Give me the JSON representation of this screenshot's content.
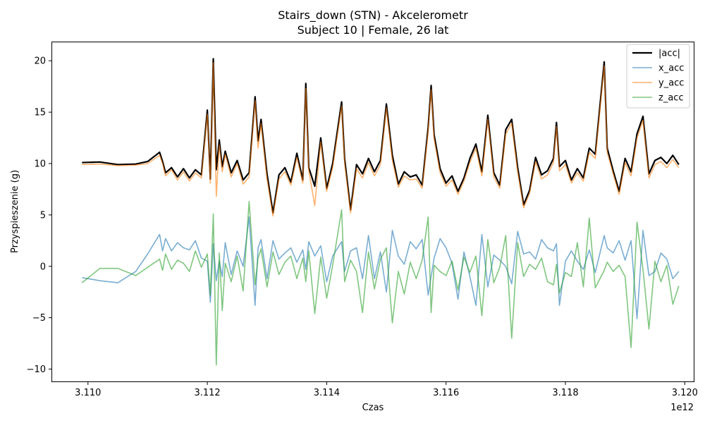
{
  "chart_data": {
    "type": "line",
    "title": "Stairs_down (STN) - Akcelerometr",
    "subtitle": "Subject 10 | Female, 26 lat",
    "xlabel": "Czas",
    "ylabel": "Przyspieszenie (g)",
    "x_offset_label": "1e12",
    "xlim": [
      3.1094,
      3.12015
    ],
    "ylim": [
      -11.2,
      21.8
    ],
    "xticks": [
      3.11,
      3.112,
      3.114,
      3.116,
      3.118,
      3.12
    ],
    "xtick_labels": [
      "3.110",
      "3.112",
      "3.114",
      "3.116",
      "3.118",
      "3.120"
    ],
    "yticks": [
      -10,
      -5,
      0,
      5,
      10,
      15,
      20
    ],
    "ytick_labels": [
      "−10",
      "−5",
      "0",
      "5",
      "10",
      "15",
      "20"
    ],
    "grid": false,
    "legend_position": "top-right",
    "series": [
      {
        "name": "|acc|",
        "color": "#000000",
        "width": 2.2,
        "opacity": 1,
        "x": [
          3.1099,
          3.1102,
          3.1105,
          3.1108,
          3.111,
          3.1112,
          3.11125,
          3.1113,
          3.1114,
          3.1115,
          3.1116,
          3.1117,
          3.1118,
          3.1119,
          3.112,
          3.11205,
          3.1121,
          3.11215,
          3.1122,
          3.11225,
          3.1123,
          3.1124,
          3.1125,
          3.1126,
          3.1127,
          3.1128,
          3.11285,
          3.1129,
          3.113,
          3.1131,
          3.1132,
          3.1133,
          3.1134,
          3.1135,
          3.1136,
          3.11365,
          3.1137,
          3.1138,
          3.1139,
          3.114,
          3.1141,
          3.11425,
          3.1143,
          3.1144,
          3.1145,
          3.1146,
          3.1147,
          3.1148,
          3.1149,
          3.115,
          3.1151,
          3.1152,
          3.1153,
          3.1154,
          3.1155,
          3.1156,
          3.1157,
          3.11575,
          3.1158,
          3.1159,
          3.116,
          3.1161,
          3.1162,
          3.1163,
          3.1164,
          3.1165,
          3.1166,
          3.1167,
          3.1168,
          3.1169,
          3.117,
          3.1171,
          3.1172,
          3.1173,
          3.1174,
          3.1175,
          3.1176,
          3.1177,
          3.1178,
          3.11785,
          3.1179,
          3.118,
          3.1181,
          3.1182,
          3.1183,
          3.1184,
          3.1185,
          3.11865,
          3.1187,
          3.1188,
          3.1189,
          3.119,
          3.1191,
          3.1192,
          3.1193,
          3.1194,
          3.1195,
          3.1196,
          3.1197,
          3.1198,
          3.1199
        ],
        "y": [
          10.1,
          10.15,
          9.9,
          9.95,
          10.2,
          11.1,
          10.2,
          9.1,
          9.6,
          8.7,
          9.5,
          8.6,
          9.4,
          8.9,
          15.2,
          8.5,
          20.2,
          9.4,
          12.3,
          9.7,
          11.2,
          9.1,
          10.3,
          8.4,
          9.1,
          16.5,
          12.2,
          14.3,
          9.0,
          5.2,
          8.9,
          9.6,
          8.2,
          11.0,
          8.4,
          17.8,
          9.6,
          7.8,
          12.5,
          7.6,
          10.0,
          16.0,
          10.5,
          5.5,
          9.9,
          9.0,
          10.5,
          9.2,
          10.3,
          15.8,
          10.8,
          8.0,
          9.2,
          8.7,
          8.9,
          7.9,
          13.5,
          17.6,
          12.8,
          9.5,
          8.1,
          8.8,
          7.3,
          8.6,
          10.5,
          11.9,
          9.2,
          14.7,
          9.1,
          7.9,
          13.3,
          14.3,
          9.6,
          6.0,
          7.4,
          10.6,
          8.9,
          9.3,
          10.5,
          14.0,
          9.7,
          10.3,
          8.4,
          9.5,
          8.6,
          11.5,
          10.9,
          19.9,
          11.5,
          9.3,
          7.3,
          10.5,
          9.2,
          12.9,
          14.6,
          9.0,
          10.3,
          10.6,
          10.0,
          10.8,
          9.9
        ]
      },
      {
        "name": "x_acc",
        "color": "#1f77b4",
        "width": 1.6,
        "opacity": 0.6,
        "x": [
          3.1099,
          3.1102,
          3.1105,
          3.1108,
          3.111,
          3.1112,
          3.11125,
          3.1113,
          3.1114,
          3.1115,
          3.1116,
          3.1117,
          3.1118,
          3.1119,
          3.112,
          3.11205,
          3.1121,
          3.11215,
          3.1122,
          3.11225,
          3.1123,
          3.1124,
          3.1125,
          3.1126,
          3.1127,
          3.1128,
          3.11285,
          3.1129,
          3.113,
          3.1131,
          3.1132,
          3.1133,
          3.1134,
          3.1135,
          3.1136,
          3.11365,
          3.1137,
          3.1138,
          3.1139,
          3.114,
          3.1141,
          3.11425,
          3.1143,
          3.1144,
          3.1145,
          3.1146,
          3.1147,
          3.1148,
          3.1149,
          3.115,
          3.1151,
          3.1152,
          3.1153,
          3.1154,
          3.1155,
          3.1156,
          3.1157,
          3.11575,
          3.1158,
          3.1159,
          3.116,
          3.1161,
          3.1162,
          3.1163,
          3.1164,
          3.1165,
          3.1166,
          3.1167,
          3.1168,
          3.1169,
          3.117,
          3.1171,
          3.1172,
          3.1173,
          3.1174,
          3.1175,
          3.1176,
          3.1177,
          3.1178,
          3.11785,
          3.1179,
          3.118,
          3.1181,
          3.1182,
          3.1183,
          3.1184,
          3.1185,
          3.11865,
          3.1187,
          3.1188,
          3.1189,
          3.119,
          3.1191,
          3.1192,
          3.1193,
          3.1194,
          3.1195,
          3.1196,
          3.1197,
          3.1198,
          3.1199
        ],
        "y": [
          -1.1,
          -1.4,
          -1.6,
          -0.5,
          1.2,
          3.1,
          1.5,
          2.7,
          1.5,
          2.3,
          1.8,
          1.6,
          2.5,
          0.8,
          0.5,
          -3.5,
          2.2,
          -1.4,
          0.5,
          -1.0,
          2.3,
          -0.8,
          1.5,
          0.0,
          4.8,
          -3.8,
          1.8,
          2.6,
          -1.2,
          2.5,
          0.7,
          1.3,
          1.8,
          0.4,
          1.6,
          -0.3,
          2.4,
          1.0,
          2.0,
          -1.5,
          1.0,
          2.4,
          -0.5,
          1.5,
          1.8,
          -1.2,
          3.0,
          -1.2,
          1.4,
          -2.5,
          3.5,
          1.0,
          0.2,
          2.4,
          1.7,
          2.6,
          -2.8,
          -1.0,
          0.8,
          2.7,
          1.8,
          0.3,
          -3.2,
          1.4,
          -1.0,
          -3.8,
          3.1,
          -2.0,
          1.1,
          0.6,
          0.0,
          -1.7,
          3.4,
          1.2,
          1.4,
          0.7,
          2.6,
          1.8,
          1.5,
          2.2,
          -3.8,
          0.5,
          1.5,
          0.5,
          -0.3,
          1.6,
          -0.6,
          3.0,
          1.8,
          1.3,
          2.5,
          0.6,
          2.5,
          -5.1,
          3.5,
          -0.9,
          -0.5,
          1.3,
          0.7,
          -1.2,
          -0.5
        ]
      },
      {
        "name": "y_acc",
        "color": "#ff7f0e",
        "width": 1.6,
        "opacity": 0.6,
        "x": [
          3.1099,
          3.1102,
          3.1105,
          3.1108,
          3.111,
          3.1112,
          3.11125,
          3.1113,
          3.1114,
          3.1115,
          3.1116,
          3.1117,
          3.1118,
          3.1119,
          3.112,
          3.11205,
          3.1121,
          3.11215,
          3.1122,
          3.11225,
          3.1123,
          3.1124,
          3.1125,
          3.1126,
          3.1127,
          3.1128,
          3.11285,
          3.1129,
          3.113,
          3.1131,
          3.1132,
          3.1133,
          3.1134,
          3.1135,
          3.1136,
          3.11365,
          3.1137,
          3.1138,
          3.1139,
          3.114,
          3.1141,
          3.11425,
          3.1143,
          3.1144,
          3.1145,
          3.1146,
          3.1147,
          3.1148,
          3.1149,
          3.115,
          3.1151,
          3.1152,
          3.1153,
          3.1154,
          3.1155,
          3.1156,
          3.1157,
          3.11575,
          3.1158,
          3.1159,
          3.116,
          3.1161,
          3.1162,
          3.1163,
          3.1164,
          3.1165,
          3.1166,
          3.1167,
          3.1168,
          3.1169,
          3.117,
          3.1171,
          3.1172,
          3.1173,
          3.1174,
          3.1175,
          3.1176,
          3.1177,
          3.1178,
          3.11785,
          3.1179,
          3.118,
          3.1181,
          3.1182,
          3.1183,
          3.1184,
          3.1185,
          3.11865,
          3.1187,
          3.1188,
          3.1189,
          3.119,
          3.1191,
          3.1192,
          3.1193,
          3.1194,
          3.1195,
          3.1196,
          3.1197,
          3.1198,
          3.1199
        ],
        "y": [
          9.9,
          9.95,
          9.8,
          9.85,
          10.0,
          10.8,
          10.0,
          8.8,
          9.4,
          8.4,
          9.2,
          8.3,
          9.1,
          8.6,
          14.8,
          8.1,
          19.8,
          6.8,
          11.8,
          9.2,
          10.9,
          8.7,
          10.0,
          8.0,
          8.7,
          16.1,
          11.5,
          13.9,
          8.5,
          4.9,
          8.5,
          9.2,
          7.9,
          10.6,
          8.1,
          17.3,
          9.3,
          5.9,
          12.1,
          7.3,
          9.6,
          15.6,
          10.1,
          5.2,
          9.5,
          8.6,
          10.1,
          8.8,
          9.9,
          15.4,
          10.3,
          7.7,
          8.8,
          8.4,
          8.5,
          7.6,
          13.1,
          17.2,
          12.4,
          9.1,
          7.8,
          8.4,
          7.0,
          8.3,
          10.1,
          11.5,
          8.8,
          14.3,
          8.7,
          7.6,
          12.9,
          13.9,
          9.2,
          5.7,
          7.1,
          10.2,
          8.5,
          8.9,
          10.1,
          13.6,
          9.3,
          9.9,
          8.1,
          9.1,
          8.3,
          11.1,
          10.5,
          19.5,
          11.1,
          9.0,
          7.0,
          10.1,
          8.8,
          12.5,
          14.2,
          8.6,
          9.9,
          10.2,
          9.6,
          10.4,
          9.6
        ]
      },
      {
        "name": "z_acc",
        "color": "#2ca02c",
        "width": 1.6,
        "opacity": 0.6,
        "x": [
          3.1099,
          3.1102,
          3.1105,
          3.1108,
          3.111,
          3.1112,
          3.11125,
          3.1113,
          3.1114,
          3.1115,
          3.1116,
          3.1117,
          3.1118,
          3.1119,
          3.112,
          3.11205,
          3.1121,
          3.11215,
          3.1122,
          3.11225,
          3.1123,
          3.1124,
          3.1125,
          3.1126,
          3.1127,
          3.1128,
          3.11285,
          3.1129,
          3.113,
          3.1131,
          3.1132,
          3.1133,
          3.1134,
          3.1135,
          3.1136,
          3.11365,
          3.1137,
          3.1138,
          3.1139,
          3.114,
          3.1141,
          3.11425,
          3.1143,
          3.1144,
          3.1145,
          3.1146,
          3.1147,
          3.1148,
          3.1149,
          3.115,
          3.1151,
          3.1152,
          3.1153,
          3.1154,
          3.1155,
          3.1156,
          3.1157,
          3.11575,
          3.1158,
          3.1159,
          3.116,
          3.1161,
          3.1162,
          3.1163,
          3.1164,
          3.1165,
          3.1166,
          3.1167,
          3.1168,
          3.1169,
          3.117,
          3.1171,
          3.1172,
          3.1173,
          3.1174,
          3.1175,
          3.1176,
          3.1177,
          3.1178,
          3.11785,
          3.1179,
          3.118,
          3.1181,
          3.1182,
          3.1183,
          3.1184,
          3.1185,
          3.11865,
          3.1187,
          3.1188,
          3.1189,
          3.119,
          3.1191,
          3.1192,
          3.1193,
          3.1194,
          3.1195,
          3.1196,
          3.1197,
          3.1198,
          3.1199
        ],
        "y": [
          -1.6,
          -0.2,
          -0.2,
          -0.9,
          -0.1,
          0.7,
          -0.4,
          1.2,
          -0.3,
          0.6,
          0.3,
          -0.5,
          1.5,
          -0.1,
          1.2,
          -2.8,
          5.1,
          -9.6,
          1.3,
          -4.3,
          0.3,
          -1.5,
          1.0,
          -2.4,
          6.3,
          -1.8,
          0.8,
          1.7,
          -2.0,
          1.4,
          -0.8,
          0.4,
          1.0,
          -1.2,
          0.8,
          -1.5,
          1.5,
          -4.6,
          0.9,
          -3.1,
          0.1,
          5.5,
          -1.5,
          0.6,
          -0.5,
          -4.5,
          1.4,
          -2.2,
          0.7,
          1.8,
          -5.5,
          -0.5,
          -2.7,
          0.4,
          -1.2,
          0.6,
          4.8,
          -4.5,
          0.1,
          -0.5,
          -0.9,
          0.5,
          -2.3,
          0.9,
          -0.6,
          1.0,
          -4.8,
          2.6,
          -1.6,
          -0.1,
          3.0,
          -7.0,
          2.3,
          -1.0,
          0.2,
          -0.3,
          0.8,
          -1.5,
          -1.8,
          0.2,
          -2.6,
          -0.6,
          -1.0,
          2.3,
          -2.0,
          4.7,
          -2.1,
          -0.4,
          0.4,
          -0.5,
          0.1,
          -1.0,
          -7.9,
          4.3,
          -0.3,
          -6.1,
          0.5,
          -1.5,
          0.1,
          -3.7,
          -1.9
        ]
      }
    ]
  }
}
